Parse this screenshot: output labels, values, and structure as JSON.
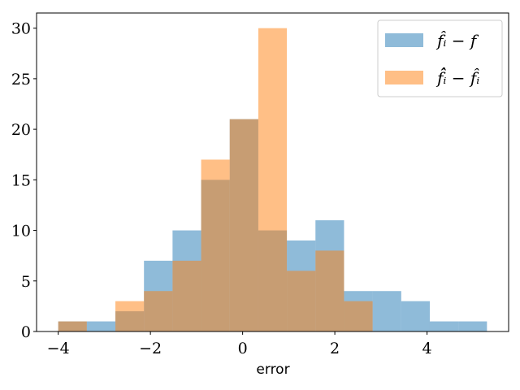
{
  "chart_data": {
    "type": "histogram",
    "xlabel": "error",
    "ylabel": "",
    "xlim": [
      -4.47,
      5.77
    ],
    "ylim": [
      0,
      31.5
    ],
    "xticks": [
      -4,
      -2,
      0,
      2,
      4
    ],
    "xtick_labels": [
      "−4",
      "−2",
      "0",
      "2",
      "4"
    ],
    "yticks": [
      0,
      5,
      10,
      15,
      20,
      25,
      30
    ],
    "ytick_labels": [
      "0",
      "5",
      "10",
      "15",
      "20",
      "25",
      "30"
    ],
    "grid": false,
    "legend_position": "top-right",
    "series": [
      {
        "name": "f̂ᵢ − f",
        "color": "#1f77b4",
        "opacity": 0.5,
        "bin_edges": [
          -4.0,
          -3.38,
          -2.76,
          -2.14,
          -1.52,
          -0.9,
          -0.28,
          0.34,
          0.96,
          1.58,
          2.2,
          2.82,
          3.44,
          4.06,
          4.68,
          5.3
        ],
        "counts": [
          1,
          1,
          2,
          7,
          10,
          15,
          21,
          10,
          9,
          11,
          4,
          4,
          3,
          1,
          1
        ]
      },
      {
        "name": "f̂̂ᵢ − f̂ᵢ",
        "color": "#ff7f0e",
        "opacity": 0.5,
        "bin_edges": [
          -4.0,
          -3.38,
          -2.76,
          -2.14,
          -1.52,
          -0.9,
          -0.28,
          0.34,
          0.96,
          1.58,
          2.2,
          2.82
        ],
        "counts": [
          1,
          0,
          3,
          4,
          7,
          17,
          21,
          30,
          6,
          8,
          3
        ]
      }
    ]
  }
}
